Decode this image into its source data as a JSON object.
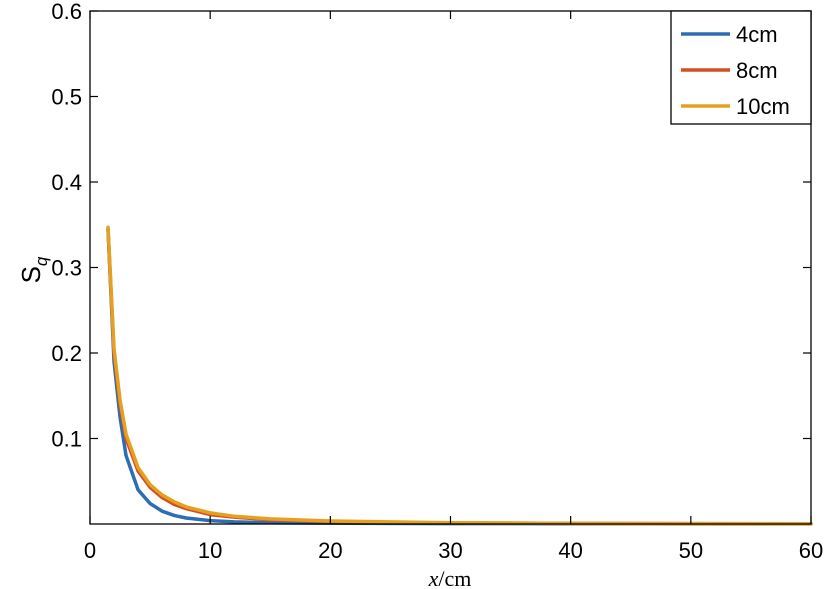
{
  "chart_data": {
    "type": "line",
    "title": "",
    "xlabel": "x/cm",
    "xlabel_var": "x",
    "xlabel_unit": "/cm",
    "ylabel": "S_q",
    "ylabel_main": "S",
    "ylabel_sub": "q",
    "xlim": [
      0,
      60
    ],
    "ylim": [
      0,
      0.6
    ],
    "xticks": [
      0,
      10,
      20,
      30,
      40,
      50,
      60
    ],
    "yticks": [
      0.1,
      0.2,
      0.3,
      0.4,
      0.5,
      0.6
    ],
    "xtick_labels": [
      "0",
      "10",
      "20",
      "30",
      "40",
      "50",
      "60"
    ],
    "ytick_labels": [
      "0.1",
      "0.2",
      "0.3",
      "0.4",
      "0.5",
      "0.6"
    ],
    "grid": false,
    "legend_position": "top-right",
    "series": [
      {
        "name": "4cm",
        "color": "#2d6db2",
        "x": [
          1.5,
          2,
          2.5,
          3,
          4,
          5,
          6,
          7,
          8,
          10,
          12,
          15,
          20,
          30,
          40,
          50,
          60
        ],
        "y": [
          0.345,
          0.19,
          0.125,
          0.08,
          0.04,
          0.024,
          0.015,
          0.01,
          0.007,
          0.004,
          0.0025,
          0.0015,
          0.001,
          0.0005,
          0.0003,
          0.0002,
          0.0001
        ]
      },
      {
        "name": "8cm",
        "color": "#d44f1f",
        "x": [
          1.5,
          2,
          2.5,
          3,
          4,
          5,
          6,
          7,
          8,
          10,
          12,
          15,
          20,
          30,
          40,
          50,
          60
        ],
        "y": [
          0.345,
          0.2,
          0.14,
          0.1,
          0.062,
          0.043,
          0.031,
          0.023,
          0.018,
          0.011,
          0.008,
          0.005,
          0.003,
          0.0012,
          0.0007,
          0.0004,
          0.0003
        ]
      },
      {
        "name": "10cm",
        "color": "#e6a020",
        "x": [
          1.5,
          2,
          2.5,
          3,
          4,
          5,
          6,
          7,
          8,
          10,
          12,
          15,
          20,
          30,
          40,
          50,
          60
        ],
        "y": [
          0.347,
          0.205,
          0.145,
          0.105,
          0.066,
          0.046,
          0.034,
          0.026,
          0.02,
          0.013,
          0.009,
          0.006,
          0.0035,
          0.0015,
          0.0008,
          0.0005,
          0.0003
        ]
      }
    ]
  }
}
